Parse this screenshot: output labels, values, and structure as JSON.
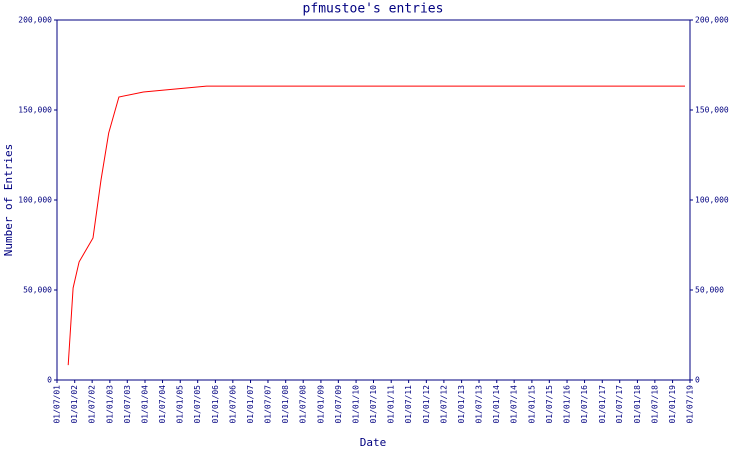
{
  "chart_data": {
    "type": "line",
    "title": "pfmustoe's entries",
    "x_label": "Date",
    "y_label": "Number of Entries",
    "x": [
      "2001-10-25",
      "2001-12-15",
      "2002-02-15",
      "2002-07-10",
      "2002-10-01",
      "2002-12-20",
      "2003-04-05",
      "2003-12-15",
      "2004-07-25",
      "2005-10-01",
      "2019-05-10"
    ],
    "values": [
      8300,
      51100,
      65600,
      78900,
      111100,
      137200,
      157200,
      160000,
      161100,
      163300,
      163300
    ],
    "color": "#ff0000",
    "axis_color": "#000080",
    "xlim": [
      "2001-07-01",
      "2019-07-01"
    ],
    "xticks": [
      {
        "value": "2001-07-01",
        "label": "01/07/01"
      },
      {
        "value": "2002-01-01",
        "label": "01/01/02"
      },
      {
        "value": "2002-07-01",
        "label": "01/07/02"
      },
      {
        "value": "2003-01-01",
        "label": "01/01/03"
      },
      {
        "value": "2003-07-01",
        "label": "01/07/03"
      },
      {
        "value": "2004-01-01",
        "label": "01/01/04"
      },
      {
        "value": "2004-07-01",
        "label": "01/07/04"
      },
      {
        "value": "2005-01-01",
        "label": "01/01/05"
      },
      {
        "value": "2005-07-01",
        "label": "01/07/05"
      },
      {
        "value": "2006-01-01",
        "label": "01/01/06"
      },
      {
        "value": "2006-07-01",
        "label": "01/07/06"
      },
      {
        "value": "2007-01-01",
        "label": "01/01/07"
      },
      {
        "value": "2007-07-01",
        "label": "01/07/07"
      },
      {
        "value": "2008-01-01",
        "label": "01/01/08"
      },
      {
        "value": "2008-07-01",
        "label": "01/07/08"
      },
      {
        "value": "2009-01-01",
        "label": "01/01/09"
      },
      {
        "value": "2009-07-01",
        "label": "01/07/09"
      },
      {
        "value": "2010-01-01",
        "label": "01/01/10"
      },
      {
        "value": "2010-07-01",
        "label": "01/07/10"
      },
      {
        "value": "2011-01-01",
        "label": "01/01/11"
      },
      {
        "value": "2011-07-01",
        "label": "01/07/11"
      },
      {
        "value": "2012-01-01",
        "label": "01/01/12"
      },
      {
        "value": "2012-07-01",
        "label": "01/07/12"
      },
      {
        "value": "2013-01-01",
        "label": "01/01/13"
      },
      {
        "value": "2013-07-01",
        "label": "01/07/13"
      },
      {
        "value": "2014-01-01",
        "label": "01/01/14"
      },
      {
        "value": "2014-07-01",
        "label": "01/07/14"
      },
      {
        "value": "2015-01-01",
        "label": "01/01/15"
      },
      {
        "value": "2015-07-01",
        "label": "01/07/15"
      },
      {
        "value": "2016-01-01",
        "label": "01/01/16"
      },
      {
        "value": "2016-07-01",
        "label": "01/07/16"
      },
      {
        "value": "2017-01-01",
        "label": "01/01/17"
      },
      {
        "value": "2017-07-01",
        "label": "01/07/17"
      },
      {
        "value": "2018-01-01",
        "label": "01/01/18"
      },
      {
        "value": "2018-07-01",
        "label": "01/07/18"
      },
      {
        "value": "2019-01-01",
        "label": "01/01/19"
      },
      {
        "value": "2019-07-01",
        "label": "01/07/19"
      }
    ],
    "ylim": [
      0,
      200000
    ],
    "yticks": [
      0,
      {
        "value": 50000,
        "label": "50,000"
      },
      {
        "value": 100000,
        "label": "100,000"
      },
      {
        "value": 150000,
        "label": "150,000"
      },
      {
        "value": 200000,
        "label": "200,000"
      }
    ]
  }
}
